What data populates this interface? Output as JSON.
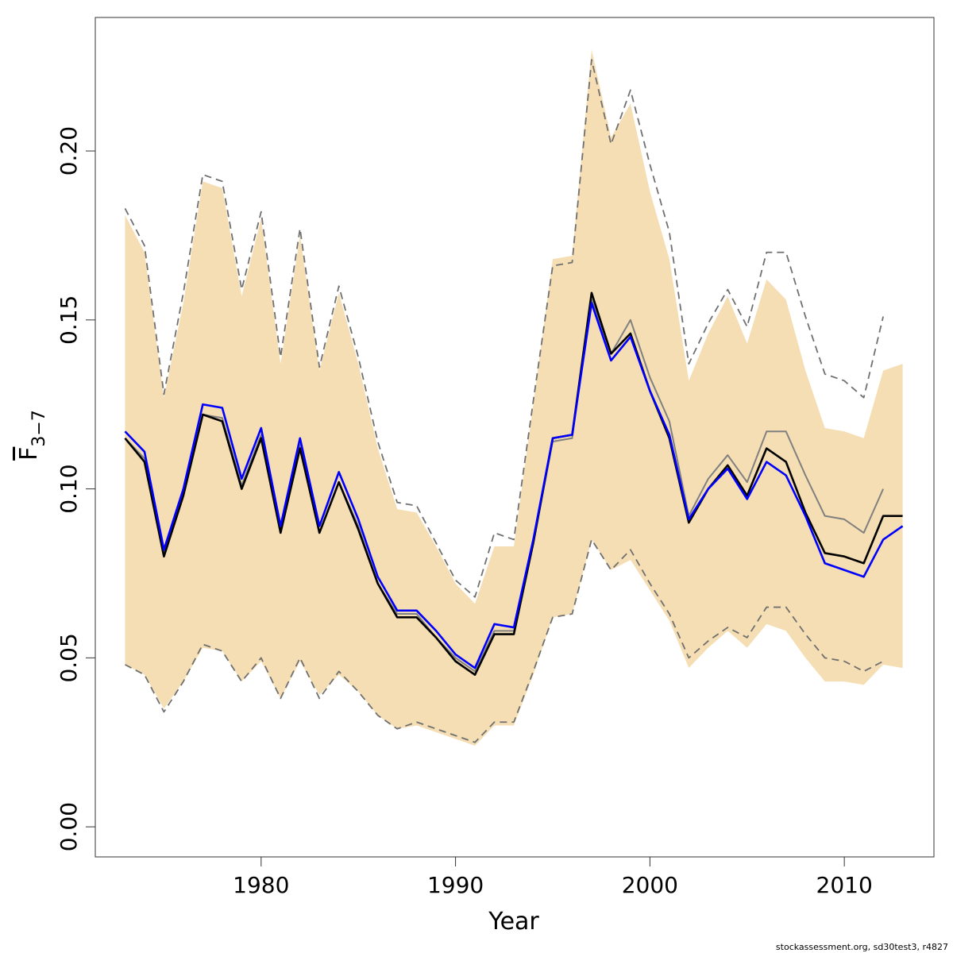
{
  "chart_data": {
    "type": "line",
    "xlabel": "Year",
    "ylabel": {
      "main": "F",
      "sub": "3−7"
    },
    "footer": "stockassessment.org, sd30test3, r4827",
    "x": [
      1973,
      1974,
      1975,
      1976,
      1977,
      1978,
      1979,
      1980,
      1981,
      1982,
      1983,
      1984,
      1985,
      1986,
      1987,
      1988,
      1989,
      1990,
      1991,
      1992,
      1993,
      1994,
      1995,
      1996,
      1997,
      1998,
      1999,
      2000,
      2001,
      2002,
      2003,
      2004,
      2005,
      2006,
      2007,
      2008,
      2009,
      2010,
      2011,
      2012,
      2013
    ],
    "band": {
      "color": "#f5deb3",
      "upper": [
        0.181,
        0.17,
        0.127,
        0.155,
        0.191,
        0.189,
        0.157,
        0.18,
        0.137,
        0.175,
        0.135,
        0.158,
        0.137,
        0.112,
        0.094,
        0.093,
        0.083,
        0.072,
        0.066,
        0.083,
        0.083,
        0.125,
        0.168,
        0.169,
        0.23,
        0.204,
        0.214,
        0.188,
        0.168,
        0.132,
        0.146,
        0.157,
        0.143,
        0.162,
        0.156,
        0.135,
        0.118,
        0.117,
        0.115,
        0.135,
        0.137
      ],
      "lower": [
        0.048,
        0.045,
        0.035,
        0.043,
        0.053,
        0.052,
        0.043,
        0.049,
        0.038,
        0.049,
        0.039,
        0.045,
        0.04,
        0.033,
        0.029,
        0.03,
        0.028,
        0.026,
        0.024,
        0.03,
        0.03,
        0.045,
        0.062,
        0.063,
        0.085,
        0.076,
        0.079,
        0.07,
        0.061,
        0.047,
        0.053,
        0.058,
        0.053,
        0.06,
        0.058,
        0.05,
        0.043,
        0.043,
        0.042,
        0.048,
        0.047
      ]
    },
    "series": [
      {
        "color": "#707070",
        "dashed": true,
        "values": [
          0.183,
          0.172,
          0.128,
          0.158,
          0.193,
          0.191,
          0.159,
          0.182,
          0.139,
          0.177,
          0.136,
          0.16,
          0.139,
          0.114,
          0.096,
          0.095,
          0.084,
          0.073,
          0.068,
          0.087,
          0.085,
          0.126,
          0.166,
          0.167,
          0.227,
          0.202,
          0.218,
          0.196,
          0.176,
          0.137,
          0.149,
          0.159,
          0.148,
          0.17,
          0.17,
          0.151,
          0.134,
          0.132,
          0.127,
          0.151,
          null
        ]
      },
      {
        "color": "#707070",
        "dashed": true,
        "values": [
          0.048,
          0.045,
          0.034,
          0.043,
          0.054,
          0.052,
          0.043,
          0.05,
          0.038,
          0.05,
          0.038,
          0.046,
          0.04,
          0.033,
          0.029,
          0.031,
          0.029,
          0.027,
          0.025,
          0.031,
          0.031,
          0.046,
          0.062,
          0.063,
          0.085,
          0.076,
          0.082,
          0.072,
          0.063,
          0.05,
          0.055,
          0.059,
          0.056,
          0.065,
          0.065,
          0.057,
          0.05,
          0.049,
          0.046,
          0.049,
          null
        ]
      },
      {
        "color": "#808080",
        "dashed": false,
        "values": [
          0.115,
          0.109,
          0.081,
          0.098,
          0.122,
          0.121,
          0.101,
          0.116,
          0.088,
          0.113,
          0.087,
          0.102,
          0.089,
          0.072,
          0.063,
          0.063,
          0.056,
          0.05,
          0.046,
          0.058,
          0.058,
          0.084,
          0.114,
          0.115,
          0.156,
          0.14,
          0.15,
          0.133,
          0.12,
          0.092,
          0.103,
          0.11,
          0.102,
          0.117,
          0.117,
          0.104,
          0.092,
          0.091,
          0.087,
          0.1,
          null
        ]
      },
      {
        "color": "#000000",
        "dashed": false,
        "values": [
          0.115,
          0.108,
          0.08,
          0.098,
          0.122,
          0.12,
          0.1,
          0.115,
          0.087,
          0.112,
          0.087,
          0.102,
          0.088,
          0.072,
          0.062,
          0.062,
          0.056,
          0.049,
          0.045,
          0.057,
          0.057,
          0.084,
          0.115,
          0.116,
          0.158,
          0.14,
          0.146,
          0.129,
          0.115,
          0.09,
          0.1,
          0.107,
          0.098,
          0.112,
          0.108,
          0.093,
          0.081,
          0.08,
          0.078,
          0.092,
          0.092
        ]
      },
      {
        "color": "#0000ff",
        "dashed": false,
        "values": [
          0.117,
          0.111,
          0.082,
          0.1,
          0.125,
          0.124,
          0.103,
          0.118,
          0.089,
          0.115,
          0.089,
          0.105,
          0.091,
          0.074,
          0.064,
          0.064,
          0.058,
          0.051,
          0.047,
          0.06,
          0.059,
          0.085,
          0.115,
          0.116,
          0.155,
          0.138,
          0.145,
          0.129,
          0.116,
          0.091,
          0.1,
          0.106,
          0.097,
          0.108,
          0.104,
          0.092,
          0.078,
          0.076,
          0.074,
          0.085,
          0.089
        ]
      }
    ],
    "xlim": [
      1971.47,
      2014.61
    ],
    "ylim": [
      -0.0089,
      0.2395
    ],
    "xticks": [
      1980,
      1990,
      2000,
      2010
    ],
    "yticks": [
      {
        "value": 0,
        "label": "0.00"
      },
      {
        "value": 0.05,
        "label": "0.05"
      },
      {
        "value": 0.1,
        "label": "0.10"
      },
      {
        "value": 0.15,
        "label": "0.15"
      },
      {
        "value": 0.2,
        "label": "0.20"
      }
    ]
  }
}
